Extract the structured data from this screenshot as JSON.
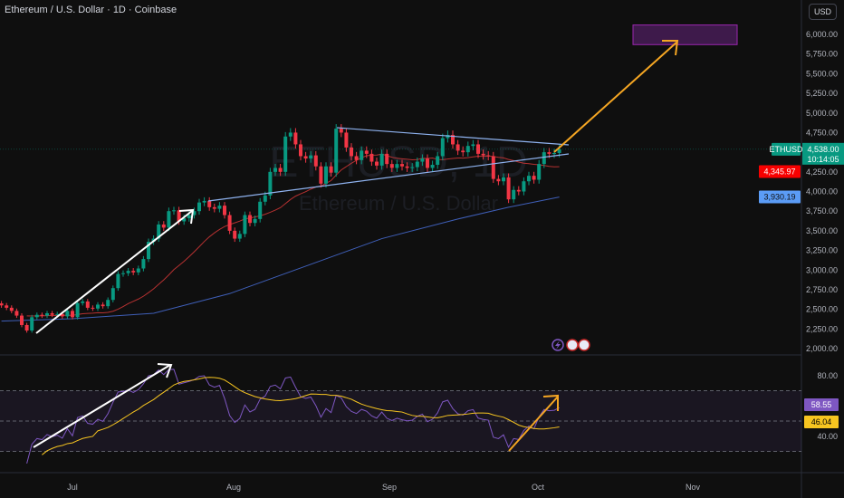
{
  "header": {
    "title": "Ethereum / U.S. Dollar · 1D · Coinbase",
    "currency_button": "USD"
  },
  "watermark": {
    "symbol": "ETHUSD, 1D",
    "name": "Ethereum / U.S. Dollar"
  },
  "colors": {
    "up": "#089981",
    "down": "#f23645",
    "ma_fast": "#e03a3a",
    "ma_slow": "#3f5fb8",
    "rsi": "#7e57c2",
    "rsi_ma": "#f7c520",
    "trendline": "#8fb3f0",
    "arrow": "#f5a623",
    "target_box": "#9c27b0"
  },
  "badges": {
    "symbol": "ETHUSD",
    "price": "4,538.00",
    "countdown": "10:14:05",
    "ma_fast": "4,345.97",
    "ma_slow": "3,930.19",
    "rsi": "58.55",
    "rsi_ma": "46.04"
  },
  "icons": [
    "lightning-icon",
    "us-flag-icon",
    "us-flag-icon"
  ],
  "chart_data": [
    {
      "type": "candlestick",
      "title": "Ethereum / U.S. Dollar · 1D · Coinbase",
      "ylim": [
        2000,
        6000
      ],
      "y_ticks": [
        "6,000.00",
        "5,750.00",
        "5,500.00",
        "5,250.00",
        "5,000.00",
        "4,750.00",
        "4,250.00",
        "4,000.00",
        "3,750.00",
        "3,500.00",
        "3,250.00",
        "3,000.00",
        "2,750.00",
        "2,500.00",
        "2,250.00",
        "2,000.00"
      ],
      "x_ticks": [
        "Jul",
        "Aug",
        "Sep",
        "Oct",
        "Nov"
      ],
      "closes": [
        2550,
        2520,
        2480,
        2420,
        2300,
        2230,
        2400,
        2430,
        2420,
        2450,
        2430,
        2440,
        2410,
        2480,
        2400,
        2580,
        2600,
        2520,
        2510,
        2560,
        2540,
        2620,
        2770,
        2950,
        2960,
        2990,
        2970,
        3020,
        3140,
        3360,
        3400,
        3580,
        3540,
        3750,
        3760,
        3620,
        3660,
        3700,
        3750,
        3860,
        3880,
        3800,
        3780,
        3820,
        3700,
        3500,
        3400,
        3460,
        3700,
        3600,
        3650,
        3870,
        3950,
        4250,
        4300,
        4250,
        4700,
        4750,
        4600,
        4450,
        4420,
        4460,
        4320,
        4100,
        4320,
        4240,
        4800,
        4750,
        4560,
        4450,
        4400,
        4520,
        4480,
        4380,
        4330,
        4480,
        4350,
        4300,
        4350,
        4320,
        4300,
        4310,
        4380,
        4420,
        4300,
        4340,
        4450,
        4680,
        4720,
        4600,
        4520,
        4500,
        4580,
        4600,
        4480,
        4460,
        4450,
        4160,
        4130,
        4180,
        3900,
        4020,
        4000,
        4130,
        4200,
        4150,
        4350,
        4500,
        4480,
        4490,
        4538
      ],
      "ma_slow": [
        [
          0,
          2350
        ],
        [
          14,
          2380
        ],
        [
          30,
          2450
        ],
        [
          45,
          2700
        ],
        [
          60,
          3050
        ],
        [
          75,
          3400
        ],
        [
          90,
          3650
        ],
        [
          100,
          3800
        ],
        [
          110,
          3930
        ]
      ],
      "last_price": 4538.0,
      "ma_fast_last": 4345.97,
      "ma_slow_last": 3930.19,
      "target_zone": [
        5870,
        6120
      ]
    },
    {
      "type": "line",
      "ylim": [
        20,
        95
      ],
      "y_ticks": [
        "80.00",
        "40.00"
      ],
      "bands": [
        30,
        50,
        70
      ],
      "rsi_last": 58.55,
      "rsi_ma_last": 46.04
    }
  ]
}
